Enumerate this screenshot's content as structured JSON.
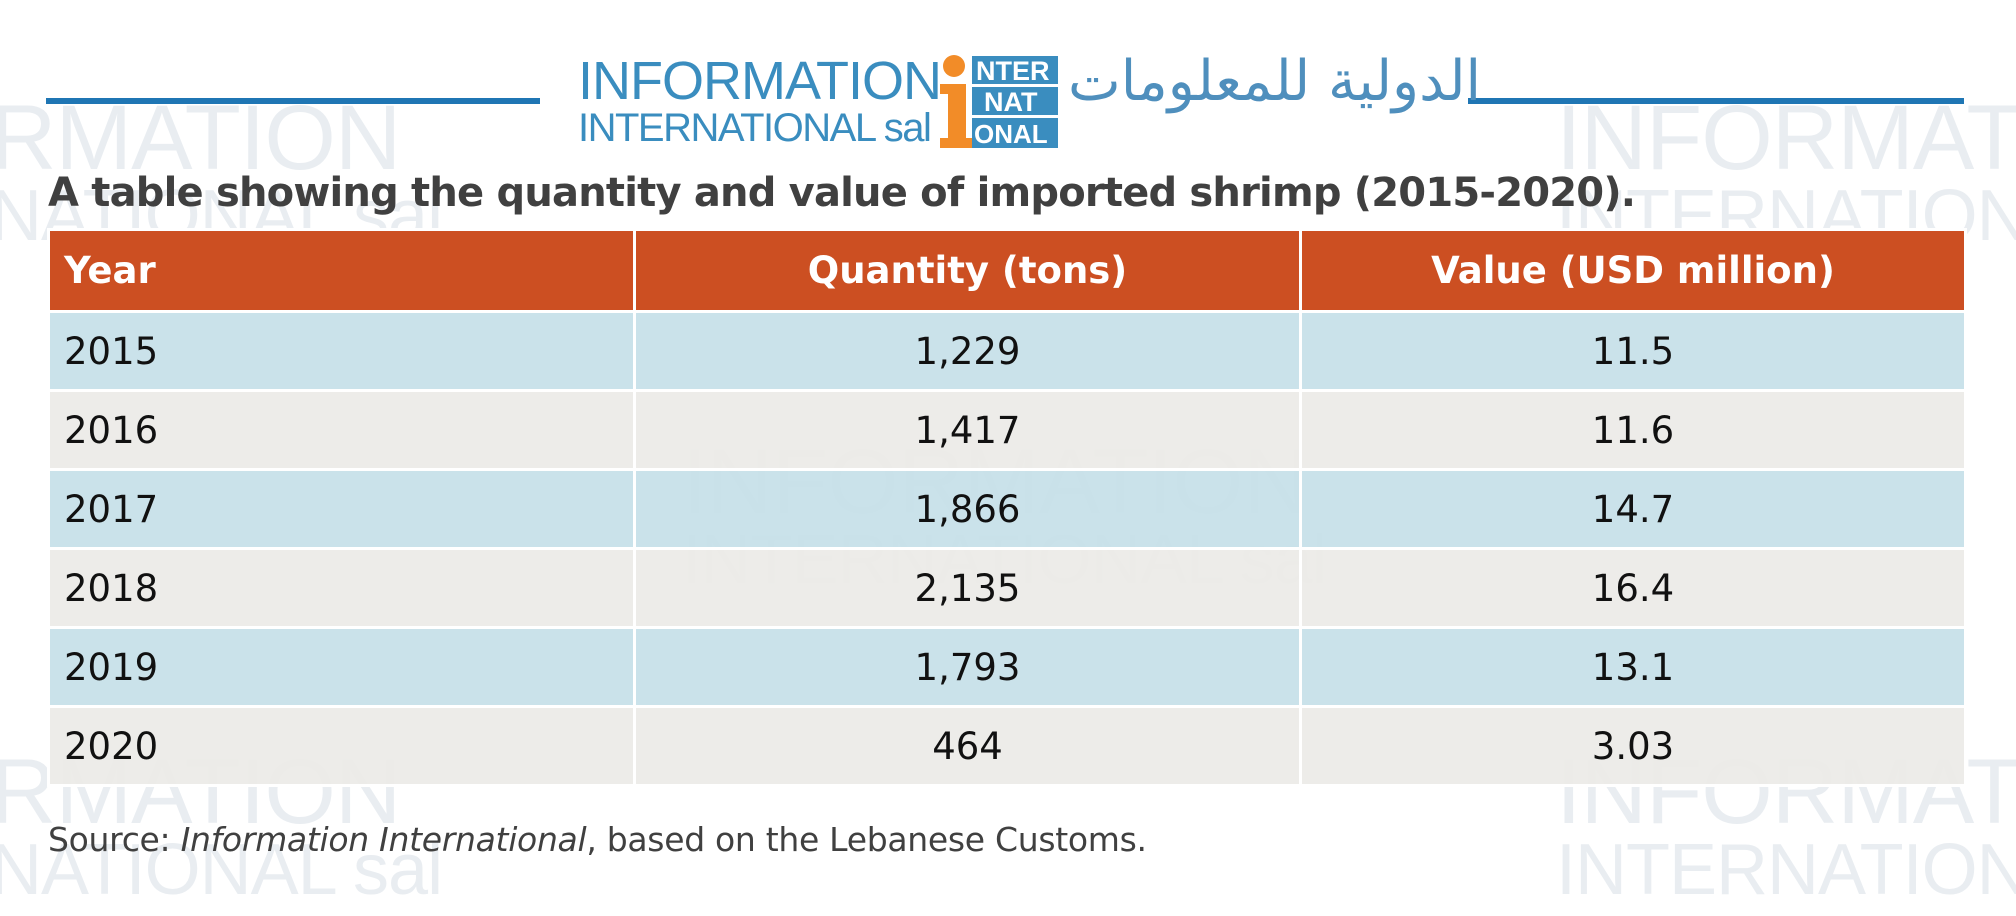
{
  "logo": {
    "line1": "INFORMATION",
    "line2": "INTERNATIONAL sal",
    "mark_rows": [
      "NTER",
      "NAT",
      "ONAL"
    ],
    "arabic": "الدولية للمعلومات",
    "colors": {
      "blue": "#3a8dbf",
      "orange": "#f28c28"
    }
  },
  "title": "A table showing the quantity and value of imported shrimp (2015-2020).",
  "table": {
    "headers": {
      "year": "Year",
      "quantity": "Quantity (tons)",
      "value": "Value (USD million)"
    },
    "rows": [
      {
        "year": "2015",
        "quantity": "1,229",
        "value": "11.5"
      },
      {
        "year": "2016",
        "quantity": "1,417",
        "value": "11.6"
      },
      {
        "year": "2017",
        "quantity": "1,866",
        "value": "14.7"
      },
      {
        "year": "2018",
        "quantity": "2,135",
        "value": "16.4"
      },
      {
        "year": "2019",
        "quantity": "1,793",
        "value": "13.1"
      },
      {
        "year": "2020",
        "quantity": "464",
        "value": "3.03"
      }
    ],
    "colors": {
      "header_bg": "#cc4f22",
      "row_odd_bg": "#c5e0e8",
      "row_even_bg": "#eceae7"
    }
  },
  "source": {
    "prefix": "Source: ",
    "publication": "Information International",
    "suffix": ", based on the Lebanese Customs."
  },
  "header_rule_color": "#1f76b4"
}
